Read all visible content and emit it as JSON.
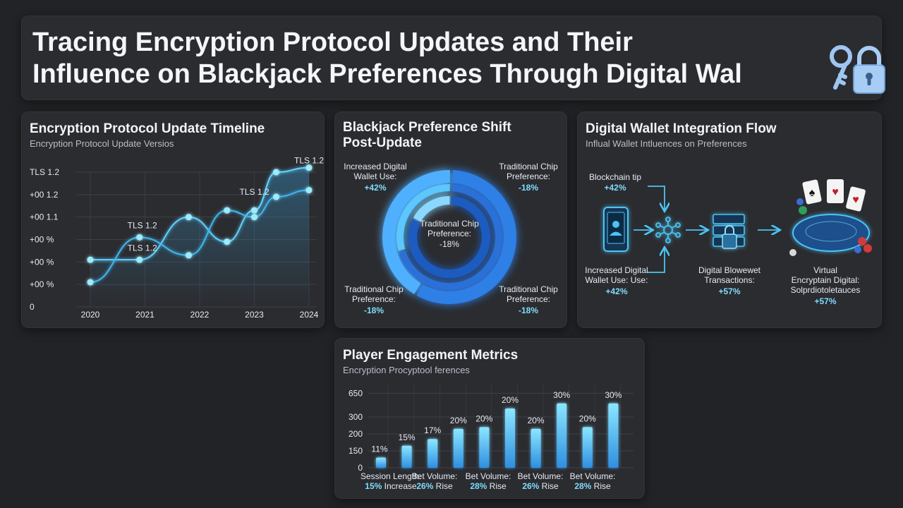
{
  "header": {
    "title_line1": "Tracing Encryption Protocol Updates and Their",
    "title_line2": "Influence on Blackjack Preferences Through Digital Wal",
    "icon": "key-lock-icon"
  },
  "timeline": {
    "title": "Encryption Protocol Update Timeline",
    "subtitle": "Encryption Protocol Update Versios",
    "y_ticks": [
      "TLS 1.2",
      "+00 1.2",
      "+00 1.1",
      "+00 %",
      "+00 %",
      "+00 %",
      "0"
    ],
    "x_ticks": [
      "2020",
      "2021",
      "2022",
      "2023",
      "2024"
    ],
    "point_labels": [
      "TLS 1.2",
      "TLS 1.2",
      "TLS 1.2",
      "TLS 1.2"
    ]
  },
  "donut": {
    "title_line1": "Blackjack Preference Shift",
    "title_line2": "Post-Update",
    "center": {
      "line1": "Traditional Chip",
      "line2": "Preference:",
      "value": "-18%"
    },
    "callouts": [
      {
        "line1": "Increased Digital",
        "line2": "Wallet Use:",
        "value": "+42%"
      },
      {
        "line1": "Traditional Chip",
        "line2": "Preference:",
        "value": "-18%"
      },
      {
        "line1": "Traditional Chip",
        "line2": "Preference:",
        "value": "-18%"
      },
      {
        "line1": "Traditional Chip",
        "line2": "Preference:",
        "value": "-18%"
      }
    ]
  },
  "flow": {
    "title": "Digital Wallet Integration Flow",
    "subtitle": "Influal Wallet Intluences on Preferences",
    "labels": [
      {
        "line1": "Blockchain tip",
        "value": "+42%"
      },
      {
        "line1": "Increased Digital",
        "line2": "Wallet Use: Use:",
        "value": "+42%"
      },
      {
        "line1": "Digital Blowewet",
        "line2": "Transactions:",
        "value": "+57%"
      },
      {
        "line1": "Virtual",
        "line2": "Encryptain Digital:",
        "line3": "Solprdiotoletauces",
        "value": "+57%"
      }
    ],
    "icons": [
      "smartphone-icon",
      "network-hub-icon",
      "secure-server-lock-icon",
      "blackjack-table-icon"
    ]
  },
  "metrics": {
    "title": "Player Engagement Metrics",
    "subtitle": "Encryption Procyptool ferences",
    "x_labels": [
      {
        "line1": "Session Length:",
        "value": "15%",
        "suffix": "Increase"
      },
      {
        "line1": "Bet Volume:",
        "value": "26%",
        "suffix": "Rise"
      },
      {
        "line1": "Bet Volume:",
        "value": "28%",
        "suffix": "Rise"
      },
      {
        "line1": "Bet Volume:",
        "value": "26%",
        "suffix": "Rise"
      },
      {
        "line1": "Bet Volume:",
        "value": "28%",
        "suffix": "Rise"
      }
    ]
  },
  "chart_data": [
    {
      "type": "line",
      "title": "Encryption Protocol Update Timeline",
      "subtitle": "Encryption Protocol Update Versios",
      "x": [
        2020,
        2020.9,
        2021.8,
        2022.5,
        2023,
        2023.4,
        2024
      ],
      "y_ticks": [
        "0",
        "+00 %",
        "+00 %",
        "+00 %",
        "+00 1.1",
        "+00 1.2",
        "TLS 1.2"
      ],
      "ylim": [
        0,
        6
      ],
      "series": [
        {
          "values": [
            2.1,
            2.1,
            4.0,
            2.9,
            4.3,
            6.0,
            6.2
          ]
        },
        {
          "values": [
            1.1,
            3.1,
            2.3,
            4.3,
            4.0,
            4.9,
            5.2
          ]
        }
      ],
      "grid": true
    },
    {
      "type": "pie",
      "title": "Blackjack Preference Shift Post-Update",
      "rings": [
        {
          "name": "outer",
          "values": [
            58,
            42
          ]
        },
        {
          "name": "middle",
          "values": [
            70,
            30
          ]
        },
        {
          "name": "inner",
          "values": [
            82,
            18
          ]
        }
      ]
    },
    {
      "type": "bar",
      "title": "Player Engagement Metrics",
      "subtitle": "Encryption Procyptool ferences",
      "y_ticks": [
        "0",
        "150",
        "200",
        "300",
        "650"
      ],
      "ylim": [
        0,
        5
      ],
      "values": [
        0.6,
        1.3,
        1.7,
        2.3,
        2.4,
        3.5,
        2.3,
        3.8,
        2.4,
        3.8
      ],
      "data_labels": [
        "11%",
        "15%",
        "17%",
        "20%",
        "20%",
        "20%",
        "20%",
        "30%",
        "20%",
        "30%"
      ],
      "grid": true
    }
  ]
}
